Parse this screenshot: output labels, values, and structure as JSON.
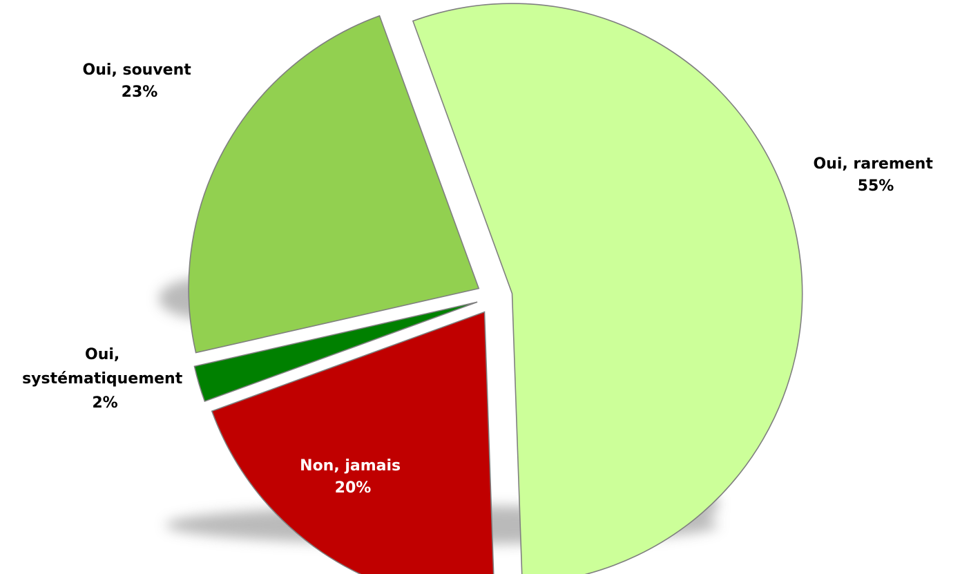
{
  "chart_data": {
    "type": "pie",
    "title": "",
    "legend": "none",
    "slices": [
      {
        "label": "Oui, rarement",
        "percent_label": "55%",
        "value": 55,
        "color": "#ccff99",
        "text_color": "#000000"
      },
      {
        "label": "Non, jamais",
        "percent_label": "20%",
        "value": 20,
        "color": "#c00000",
        "text_color": "#ffffff"
      },
      {
        "label_lines": [
          "Oui,",
          "systématiquement"
        ],
        "percent_label": "2%",
        "value": 2,
        "color": "#008000",
        "text_color": "#000000"
      },
      {
        "label": "Oui, souvent",
        "percent_label": "23%",
        "value": 23,
        "color": "#92d050",
        "text_color": "#000000"
      }
    ]
  }
}
